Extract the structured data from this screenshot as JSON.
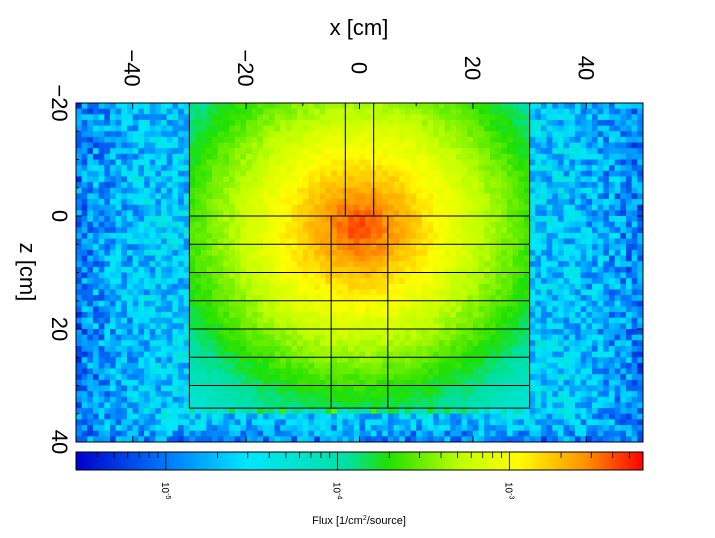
{
  "chart_data": {
    "type": "heatmap",
    "xlabel": "x [cm]",
    "ylabel": "z [cm]",
    "xlim": [
      -50,
      50
    ],
    "ylim": [
      -20,
      40
    ],
    "x_ticks": [
      -40,
      -20,
      0,
      20,
      40
    ],
    "y_ticks": [
      -20,
      0,
      20,
      40
    ],
    "x_tick_labels": [
      "−40",
      "−20",
      "0",
      "20",
      "40"
    ],
    "y_tick_labels": [
      "−20",
      "0",
      "20",
      "40"
    ],
    "colorbar": {
      "label_main": "Flux [1/cm",
      "label_sup": "2",
      "label_end": "/source]",
      "scale": "log",
      "range": [
        3e-06,
        0.006
      ],
      "ticks": [
        {
          "value": 1e-05,
          "base": "10",
          "exp": "-5"
        },
        {
          "value": 0.0001,
          "base": "10",
          "exp": "-4"
        },
        {
          "value": 0.001,
          "base": "10",
          "exp": "-3"
        }
      ]
    },
    "field": {
      "peak_flux": 0.0045,
      "peak_x": 0,
      "peak_z": 2,
      "background_flux": 2.5e-05,
      "outer_edge_flux": 1e-05,
      "slab_region_x": [
        -30,
        30
      ],
      "slab_region_z": [
        -20,
        35
      ]
    },
    "geometry_lines": {
      "outer_box": {
        "x": [
          -30,
          30
        ],
        "z": [
          -20,
          34
        ]
      },
      "top_channel": {
        "x": [
          -2.5,
          2.5
        ],
        "z": [
          -20,
          0
        ]
      },
      "horizontal_layers_z": [
        0,
        5,
        10,
        15,
        20,
        25,
        30,
        34
      ],
      "inner_column_x": [
        -5,
        5
      ],
      "inner_column_z": [
        0,
        34
      ]
    }
  }
}
